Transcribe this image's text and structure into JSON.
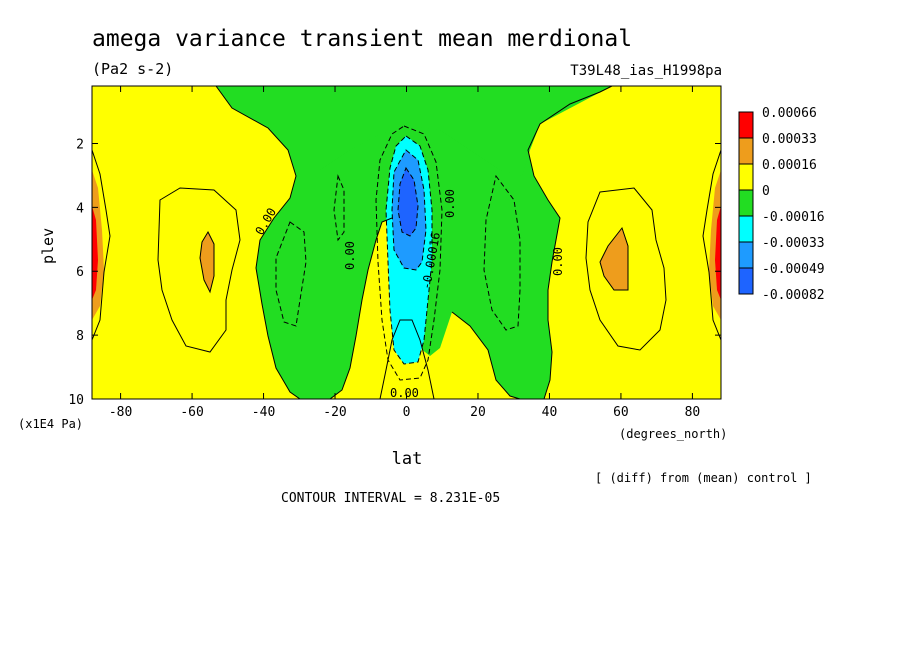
{
  "chart_data": {
    "type": "heatmap",
    "title": "amega variance transient mean merdional",
    "units": "(Pa2 s-2)",
    "dataset": "T39L48_ias_H1998pa",
    "xlabel": "lat",
    "x_units": "(degrees_north)",
    "ylabel": "plev",
    "y_units": "(x1E4 Pa)",
    "xlim": [
      -88,
      88
    ],
    "ylim": [
      0.2,
      10
    ],
    "y_reversed": true,
    "x_ticks": [
      "-80",
      "-60",
      "-40",
      "-20",
      "0",
      "20",
      "40",
      "60",
      "80"
    ],
    "x_tick_values": [
      -80,
      -60,
      -40,
      -20,
      0,
      20,
      40,
      60,
      80
    ],
    "y_ticks": [
      "2",
      "4",
      "6",
      "8",
      "10"
    ],
    "y_tick_values": [
      2,
      4,
      6,
      8,
      10
    ],
    "contour_interval_label": "CONTOUR INTERVAL = 8.231E-05",
    "diff_note": "[ (diff) from (mean) control ]",
    "contour_labels": [
      "0.00",
      "0.00",
      "0.00",
      "0.00",
      "0.00",
      "0.00",
      "-0.00016"
    ],
    "legend": {
      "placement": "right",
      "levels": [
        {
          "label": "0.00066",
          "color": "#ff0000"
        },
        {
          "label": "0.00033",
          "color": "#ee9d1c"
        },
        {
          "label": "0.00016",
          "color": "#ffff00"
        },
        {
          "label": "0",
          "color": "#22dd22"
        },
        {
          "label": "-0.00016",
          "color": "#00ffff"
        },
        {
          "label": "-0.00033",
          "color": "#1e9bff"
        },
        {
          "label": "-0.00049",
          "color": "#1e64ff"
        },
        {
          "label": "-0.00082",
          "color": ""
        }
      ]
    },
    "fill_colors": {
      "red": "#ff0000",
      "orange": "#ee9d1c",
      "yellow": "#ffff00",
      "green": "#22dd22",
      "cyan": "#00ffff",
      "lightblue": "#1e9bff",
      "blue": "#1e64ff"
    }
  }
}
